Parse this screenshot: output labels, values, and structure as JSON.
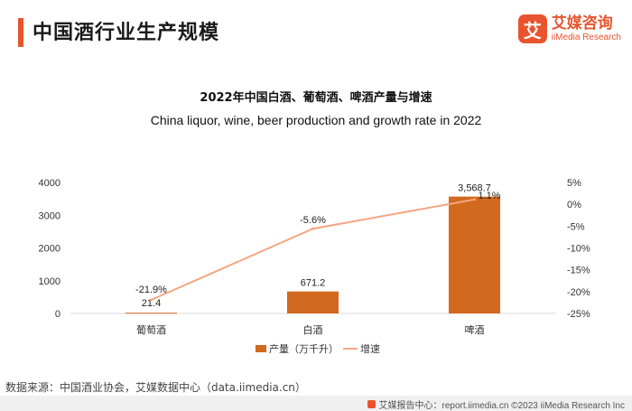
{
  "header": {
    "title": "中国酒行业生产规模",
    "logo_mark": "艾",
    "logo_cn": "艾媒咨询",
    "logo_en": "iiMedia Research"
  },
  "chart_data": {
    "type": "bar",
    "title": "2022年中国白酒、葡萄酒、啤酒产量与增速",
    "subtitle": "China liquor, wine, beer production and growth rate in 2022",
    "categories": [
      "葡萄酒",
      "白酒",
      "啤酒"
    ],
    "series": [
      {
        "name": "产量（万千升）",
        "type": "bar",
        "axis": "left",
        "values": [
          21.4,
          671.2,
          3568.7
        ],
        "labels": [
          "21.4",
          "671.2",
          "3,568.7"
        ],
        "color": "#d2691e"
      },
      {
        "name": "增速",
        "type": "line",
        "axis": "right",
        "values": [
          -21.9,
          -5.6,
          1.1
        ],
        "labels": [
          "-21.9%",
          "-5.6%",
          "1.1%"
        ],
        "color": "#f4a582"
      }
    ],
    "y_left": {
      "range": [
        0,
        4000
      ],
      "ticks": [
        "0",
        "1000",
        "2000",
        "3000",
        "4000"
      ]
    },
    "y_right": {
      "range": [
        -25,
        5
      ],
      "ticks": [
        "-25%",
        "-20%",
        "-15%",
        "-10%",
        "-5%",
        "0%",
        "5%"
      ]
    },
    "legend_position": "bottom",
    "grid": false
  },
  "footer": {
    "source": "数据来源：中国酒业协会，艾媒数据中心（data.iimedia.cn）",
    "credit": "艾媒报告中心：report.iimedia.cn ©2023 iiMedia Research Inc"
  }
}
